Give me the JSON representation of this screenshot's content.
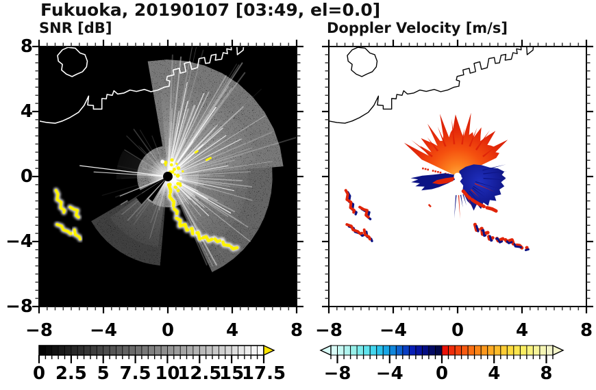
{
  "title": "Fukuoka, 20190107 [03:49, el=0.0]",
  "chart_data": {
    "type": "heatmap",
    "title": "Fukuoka, 20190107 [03:49, el=0.0]",
    "station": "Fukuoka",
    "date": "20190107",
    "time": "03:49",
    "elevation": "0.0",
    "panels": [
      {
        "id": "snr",
        "subtitle": "SNR [dB]",
        "xlim": [
          -8,
          8
        ],
        "ylim": [
          -8,
          8
        ],
        "x_tick_values": [
          -8,
          -4,
          0,
          4,
          8
        ],
        "x_tick_labels": [
          "−8",
          "−4",
          "0",
          "4",
          "8"
        ],
        "y_tick_values": [
          -8,
          -4,
          0,
          4,
          8
        ],
        "y_tick_labels": [
          "−8",
          "−4",
          "0",
          "4",
          "8"
        ],
        "minor_tick_step": 0.5,
        "background": "#000000",
        "coast_color": "#ffffff",
        "colorbar": {
          "min": 0,
          "max": 17.5,
          "segment_step": 0.5,
          "tick_label_values": [
            0,
            2.5,
            5,
            7.5,
            10,
            12.5,
            15,
            17.5
          ],
          "tick_labels": [
            "0",
            "2.5",
            "5",
            "7.5",
            "10",
            "12.5",
            "15",
            "17.5"
          ],
          "colormap": "gray-linear-black-to-white",
          "over_arrow_color": "#fce400"
        }
      },
      {
        "id": "doppler",
        "subtitle": "Doppler Velocity [m/s]",
        "xlim": [
          -8,
          8
        ],
        "ylim": [
          -8,
          8
        ],
        "x_tick_values": [
          -8,
          -4,
          0,
          4,
          8
        ],
        "x_tick_labels": [
          "−8",
          "−4",
          "0",
          "4",
          "8"
        ],
        "minor_tick_step": 0.5,
        "background": "#ffffff",
        "coast_color": "#000000",
        "colorbar": {
          "min": -8.5,
          "max": 8.5,
          "segment_step": 0.5,
          "tick_label_values": [
            -8,
            -4,
            0,
            4,
            8
          ],
          "tick_labels": [
            "−8",
            "−4",
            "0",
            "4",
            "8"
          ],
          "segment_colors": [
            "#d9fbf7",
            "#c6f8f3",
            "#b0f4ef",
            "#97f0ea",
            "#7cebec",
            "#60e3ee",
            "#43d6ee",
            "#2ac2ec",
            "#18a6e6",
            "#0f86dc",
            "#0d62d0",
            "#0a3fc4",
            "#081fb6",
            "#07149e",
            "#050e83",
            "#040a64",
            "#030747",
            "#ea1208",
            "#ef2c0a",
            "#f4430c",
            "#f75a10",
            "#fa6f13",
            "#fc8517",
            "#fd981c",
            "#feaa23",
            "#febc2b",
            "#fecd34",
            "#fedb3f",
            "#fde64e",
            "#fbee62",
            "#f9f27d",
            "#f7f49a",
            "#f5f5b4",
            "#f3f4c9"
          ]
        }
      }
    ],
    "radar_center": [
      0,
      0
    ],
    "coastline": {
      "main": [
        [
          -8.15,
          3.45
        ],
        [
          -7.5,
          3.32
        ],
        [
          -7.0,
          3.28
        ],
        [
          -6.55,
          3.42
        ],
        [
          -6.1,
          3.62
        ],
        [
          -5.55,
          3.95
        ],
        [
          -5.2,
          4.38
        ],
        [
          -4.92,
          4.95
        ],
        [
          -4.98,
          4.4
        ],
        [
          -4.62,
          4.37
        ],
        [
          -4.62,
          4.15
        ],
        [
          -4.1,
          4.15
        ],
        [
          -4.1,
          4.8
        ],
        [
          -3.82,
          4.78
        ],
        [
          -3.78,
          5.05
        ],
        [
          -3.45,
          5.0
        ],
        [
          -3.35,
          5.28
        ],
        [
          -3.12,
          5.08
        ],
        [
          -2.72,
          5.14
        ],
        [
          -2.35,
          5.32
        ],
        [
          -1.95,
          5.24
        ],
        [
          -1.45,
          5.36
        ],
        [
          -1.05,
          5.22
        ],
        [
          -0.62,
          5.32
        ],
        [
          -0.22,
          5.5
        ],
        [
          0.08,
          5.56
        ],
        [
          0.12,
          5.88
        ],
        [
          -0.08,
          5.94
        ],
        [
          -0.03,
          6.16
        ],
        [
          0.38,
          6.26
        ],
        [
          0.33,
          6.56
        ],
        [
          0.72,
          6.66
        ],
        [
          0.78,
          6.36
        ],
        [
          1.12,
          6.46
        ],
        [
          1.02,
          6.96
        ],
        [
          1.38,
          7.06
        ],
        [
          1.48,
          6.6
        ],
        [
          1.84,
          6.7
        ],
        [
          1.94,
          7.26
        ],
        [
          2.28,
          7.32
        ],
        [
          2.34,
          6.96
        ],
        [
          2.6,
          7.0
        ],
        [
          2.7,
          7.46
        ],
        [
          3.0,
          7.52
        ],
        [
          2.95,
          7.16
        ],
        [
          3.34,
          7.22
        ],
        [
          3.44,
          7.62
        ],
        [
          3.7,
          7.56
        ],
        [
          3.66,
          7.86
        ],
        [
          3.95,
          7.8
        ],
        [
          3.92,
          8.15
        ]
      ],
      "flag": [
        [
          4.28,
          8.15
        ],
        [
          4.32,
          7.5
        ],
        [
          4.68,
          7.78
        ],
        [
          4.72,
          8.15
        ]
      ],
      "island": [
        [
          -6.2,
          7.95
        ],
        [
          -5.75,
          7.9
        ],
        [
          -5.45,
          7.6
        ],
        [
          -5.15,
          7.5
        ],
        [
          -5.0,
          7.1
        ],
        [
          -5.05,
          6.75
        ],
        [
          -5.3,
          6.45
        ],
        [
          -5.65,
          6.3
        ],
        [
          -5.95,
          6.15
        ],
        [
          -6.3,
          6.3
        ],
        [
          -6.6,
          6.55
        ],
        [
          -6.55,
          6.9
        ],
        [
          -6.8,
          7.1
        ],
        [
          -6.85,
          7.45
        ],
        [
          -6.55,
          7.8
        ]
      ]
    },
    "snr_features": {
      "color_echo": "#fdf300",
      "ray_sectors": [
        {
          "a0": 8,
          "a1": 88,
          "count": 42,
          "lmin": 2.2,
          "lmax": 8.6,
          "omin": 0.05,
          "omax": 0.42,
          "wmin": 0.8,
          "wmax": 2.2
        },
        {
          "a0": 18,
          "a1": 82,
          "count": 14,
          "lmin": 2.5,
          "lmax": 6.0,
          "omin": 0.4,
          "omax": 0.8,
          "wmin": 1.0,
          "wmax": 1.8
        },
        {
          "a0": -68,
          "a1": 8,
          "count": 34,
          "lmin": 1.8,
          "lmax": 6.5,
          "omin": 0.05,
          "omax": 0.4,
          "wmin": 0.8,
          "wmax": 2.0
        },
        {
          "a0": -55,
          "a1": -15,
          "count": 9,
          "lmin": 1.8,
          "lmax": 4.2,
          "omin": 0.4,
          "omax": 0.75,
          "wmin": 1.0,
          "wmax": 1.6
        },
        {
          "a0": 195,
          "a1": 258,
          "count": 16,
          "lmin": 1.2,
          "lmax": 4.3,
          "omin": 0.05,
          "omax": 0.28,
          "wmin": 0.8,
          "wmax": 1.8
        },
        {
          "a0": 95,
          "a1": 185,
          "count": 14,
          "lmin": 1.2,
          "lmax": 3.6,
          "omin": 0.04,
          "omax": 0.25,
          "wmin": 0.8,
          "wmax": 1.6
        }
      ],
      "bright_rays": [
        {
          "a": 173,
          "len": 5.5,
          "w": 1.3,
          "o": 0.95
        },
        {
          "a": 176.5,
          "len": 4.6,
          "w": 1.1,
          "o": 0.8
        },
        {
          "a": 202,
          "len": 3.2,
          "w": 1.2,
          "o": 0.7
        },
        {
          "a": -30,
          "len": 4.5,
          "w": 1.4,
          "o": 0.85
        },
        {
          "a": 55,
          "len": 5.2,
          "w": 1.5,
          "o": 0.9
        },
        {
          "a": 75,
          "len": 4.8,
          "w": 1.3,
          "o": 0.85
        },
        {
          "a": 35,
          "len": 4.4,
          "w": 1.3,
          "o": 0.8
        },
        {
          "a": 10,
          "len": 3.8,
          "w": 1.2,
          "o": 0.75
        },
        {
          "a": -12,
          "len": 4.2,
          "w": 1.2,
          "o": 0.8
        }
      ],
      "haze_cones": [
        {
          "a0": 10,
          "a1": 95,
          "r": 5.6,
          "o": 0.9
        },
        {
          "a0": -60,
          "a1": 10,
          "r": 5.0,
          "o": 0.75
        },
        {
          "a0": 215,
          "a1": 262,
          "r": 4.4,
          "o": 0.55
        },
        {
          "a0": 150,
          "a1": 183,
          "r": 3.2,
          "o": 0.3
        }
      ],
      "shadow_wedges": [
        {
          "a0": 206,
          "a1": 212,
          "r": 2.9
        },
        {
          "a0": 213,
          "a1": 226,
          "r": 2.35
        },
        {
          "a0": 229,
          "a1": 238,
          "r": 1.8
        }
      ],
      "chain": [
        [
          0.05,
          -0.5
        ],
        [
          0.18,
          -0.85
        ],
        [
          0.12,
          -1.25
        ],
        [
          0.38,
          -1.55
        ],
        [
          0.33,
          -1.95
        ],
        [
          0.58,
          -2.15
        ],
        [
          0.52,
          -2.55
        ],
        [
          0.78,
          -2.7
        ],
        [
          0.72,
          -3.05
        ],
        [
          1.08,
          -2.95
        ],
        [
          1.18,
          -3.3
        ],
        [
          1.5,
          -3.2
        ],
        [
          1.55,
          -3.55
        ],
        [
          1.88,
          -3.45
        ],
        [
          1.98,
          -3.85
        ],
        [
          2.38,
          -3.7
        ],
        [
          2.52,
          -3.95
        ],
        [
          2.88,
          -3.8
        ],
        [
          3.08,
          -4.0
        ],
        [
          3.38,
          -3.9
        ],
        [
          3.48,
          -4.2
        ],
        [
          3.85,
          -4.25
        ],
        [
          4.05,
          -4.45
        ],
        [
          4.3,
          -4.38
        ]
      ],
      "islands": [
        [
          [
            -6.95,
            -0.85
          ],
          [
            -6.82,
            -1.08
          ],
          [
            -6.88,
            -1.42
          ],
          [
            -6.62,
            -1.58
          ],
          [
            -6.66,
            -1.92
          ],
          [
            -6.42,
            -2.08
          ],
          [
            -6.46,
            -2.2
          ]
        ],
        [
          [
            -6.08,
            -1.88
          ],
          [
            -5.84,
            -2.02
          ],
          [
            -5.62,
            -2.08
          ],
          [
            -5.7,
            -2.38
          ],
          [
            -5.55,
            -2.5
          ]
        ],
        [
          [
            -6.88,
            -2.95
          ],
          [
            -6.6,
            -3.05
          ],
          [
            -6.5,
            -3.28
          ],
          [
            -6.2,
            -3.38
          ],
          [
            -6.05,
            -3.52
          ],
          [
            -5.95,
            -3.48
          ]
        ],
        [
          [
            -5.8,
            -3.28
          ],
          [
            -5.75,
            -3.58
          ],
          [
            -5.5,
            -3.72
          ],
          [
            -5.45,
            -3.85
          ]
        ]
      ],
      "extra_dashes": [
        [
          [
            2.4,
            1.02
          ],
          [
            2.66,
            1.14
          ]
        ],
        [
          [
            1.72,
            1.48
          ],
          [
            1.84,
            1.56
          ]
        ]
      ]
    },
    "doppler_features": {
      "away_color": "#e02408",
      "toward_color": "#0c1384",
      "fan": {
        "a0": 25,
        "a1": 155,
        "r_base": 2.2,
        "r_noise": 1.0
      },
      "blob": [
        [
          0.1,
          0.35
        ],
        [
          0.5,
          0.6
        ],
        [
          1.0,
          0.75
        ],
        [
          1.5,
          0.7
        ],
        [
          2.0,
          0.55
        ],
        [
          2.5,
          0.5
        ],
        [
          2.9,
          0.3
        ],
        [
          2.75,
          0.1
        ],
        [
          3.0,
          -0.1
        ],
        [
          2.7,
          -0.35
        ],
        [
          2.9,
          -0.6
        ],
        [
          2.6,
          -0.8
        ],
        [
          2.7,
          -1.1
        ],
        [
          2.3,
          -1.2
        ],
        [
          2.4,
          -1.5
        ],
        [
          2.0,
          -1.45
        ],
        [
          1.9,
          -1.8
        ],
        [
          1.6,
          -1.6
        ],
        [
          1.45,
          -2.0
        ],
        [
          1.2,
          -1.7
        ],
        [
          1.0,
          -2.1
        ],
        [
          0.85,
          -1.75
        ],
        [
          0.6,
          -1.5
        ],
        [
          0.45,
          -1.2
        ],
        [
          0.3,
          -0.9
        ],
        [
          0.35,
          -0.55
        ],
        [
          0.15,
          -0.3
        ],
        [
          0.3,
          -0.1
        ],
        [
          0.12,
          0.1
        ]
      ],
      "west_wedge_blue": [
        [
          -0.12,
          0.1
        ],
        [
          -0.8,
          0.2
        ],
        [
          -1.5,
          0.12
        ],
        [
          -2.2,
          0.05
        ],
        [
          -2.92,
          -0.1
        ],
        [
          -2.45,
          -0.18
        ],
        [
          -2.88,
          -0.35
        ],
        [
          -2.35,
          -0.42
        ],
        [
          -2.62,
          -0.6
        ],
        [
          -2.05,
          -0.62
        ],
        [
          -2.25,
          -0.85
        ],
        [
          -1.6,
          -0.78
        ],
        [
          -1.15,
          -0.65
        ],
        [
          -0.6,
          -0.42
        ],
        [
          -0.18,
          -0.2
        ]
      ],
      "west_wedge_red": [
        [
          -0.15,
          -0.02
        ],
        [
          -0.75,
          -0.1
        ],
        [
          -1.3,
          -0.22
        ],
        [
          -1.58,
          -0.4
        ],
        [
          -1.15,
          -0.48
        ],
        [
          -0.7,
          -0.42
        ],
        [
          -0.3,
          -0.28
        ]
      ],
      "dotted_ray": {
        "angle": 167,
        "r0": 0.45,
        "r1": 2.35,
        "step": 0.16
      },
      "south_fringe": [
        [
          0.35,
          -0.9
        ],
        [
          0.65,
          -1.25
        ],
        [
          1.0,
          -1.5
        ],
        [
          1.35,
          -1.7
        ],
        [
          1.75,
          -1.9
        ],
        [
          2.15,
          -2.0
        ],
        [
          2.45,
          -2.15
        ]
      ],
      "tiny_dash": [
        [
          -1.8,
          -1.72
        ],
        [
          -1.66,
          -1.86
        ]
      ],
      "center_hole_radius_px": 5.5
    }
  }
}
